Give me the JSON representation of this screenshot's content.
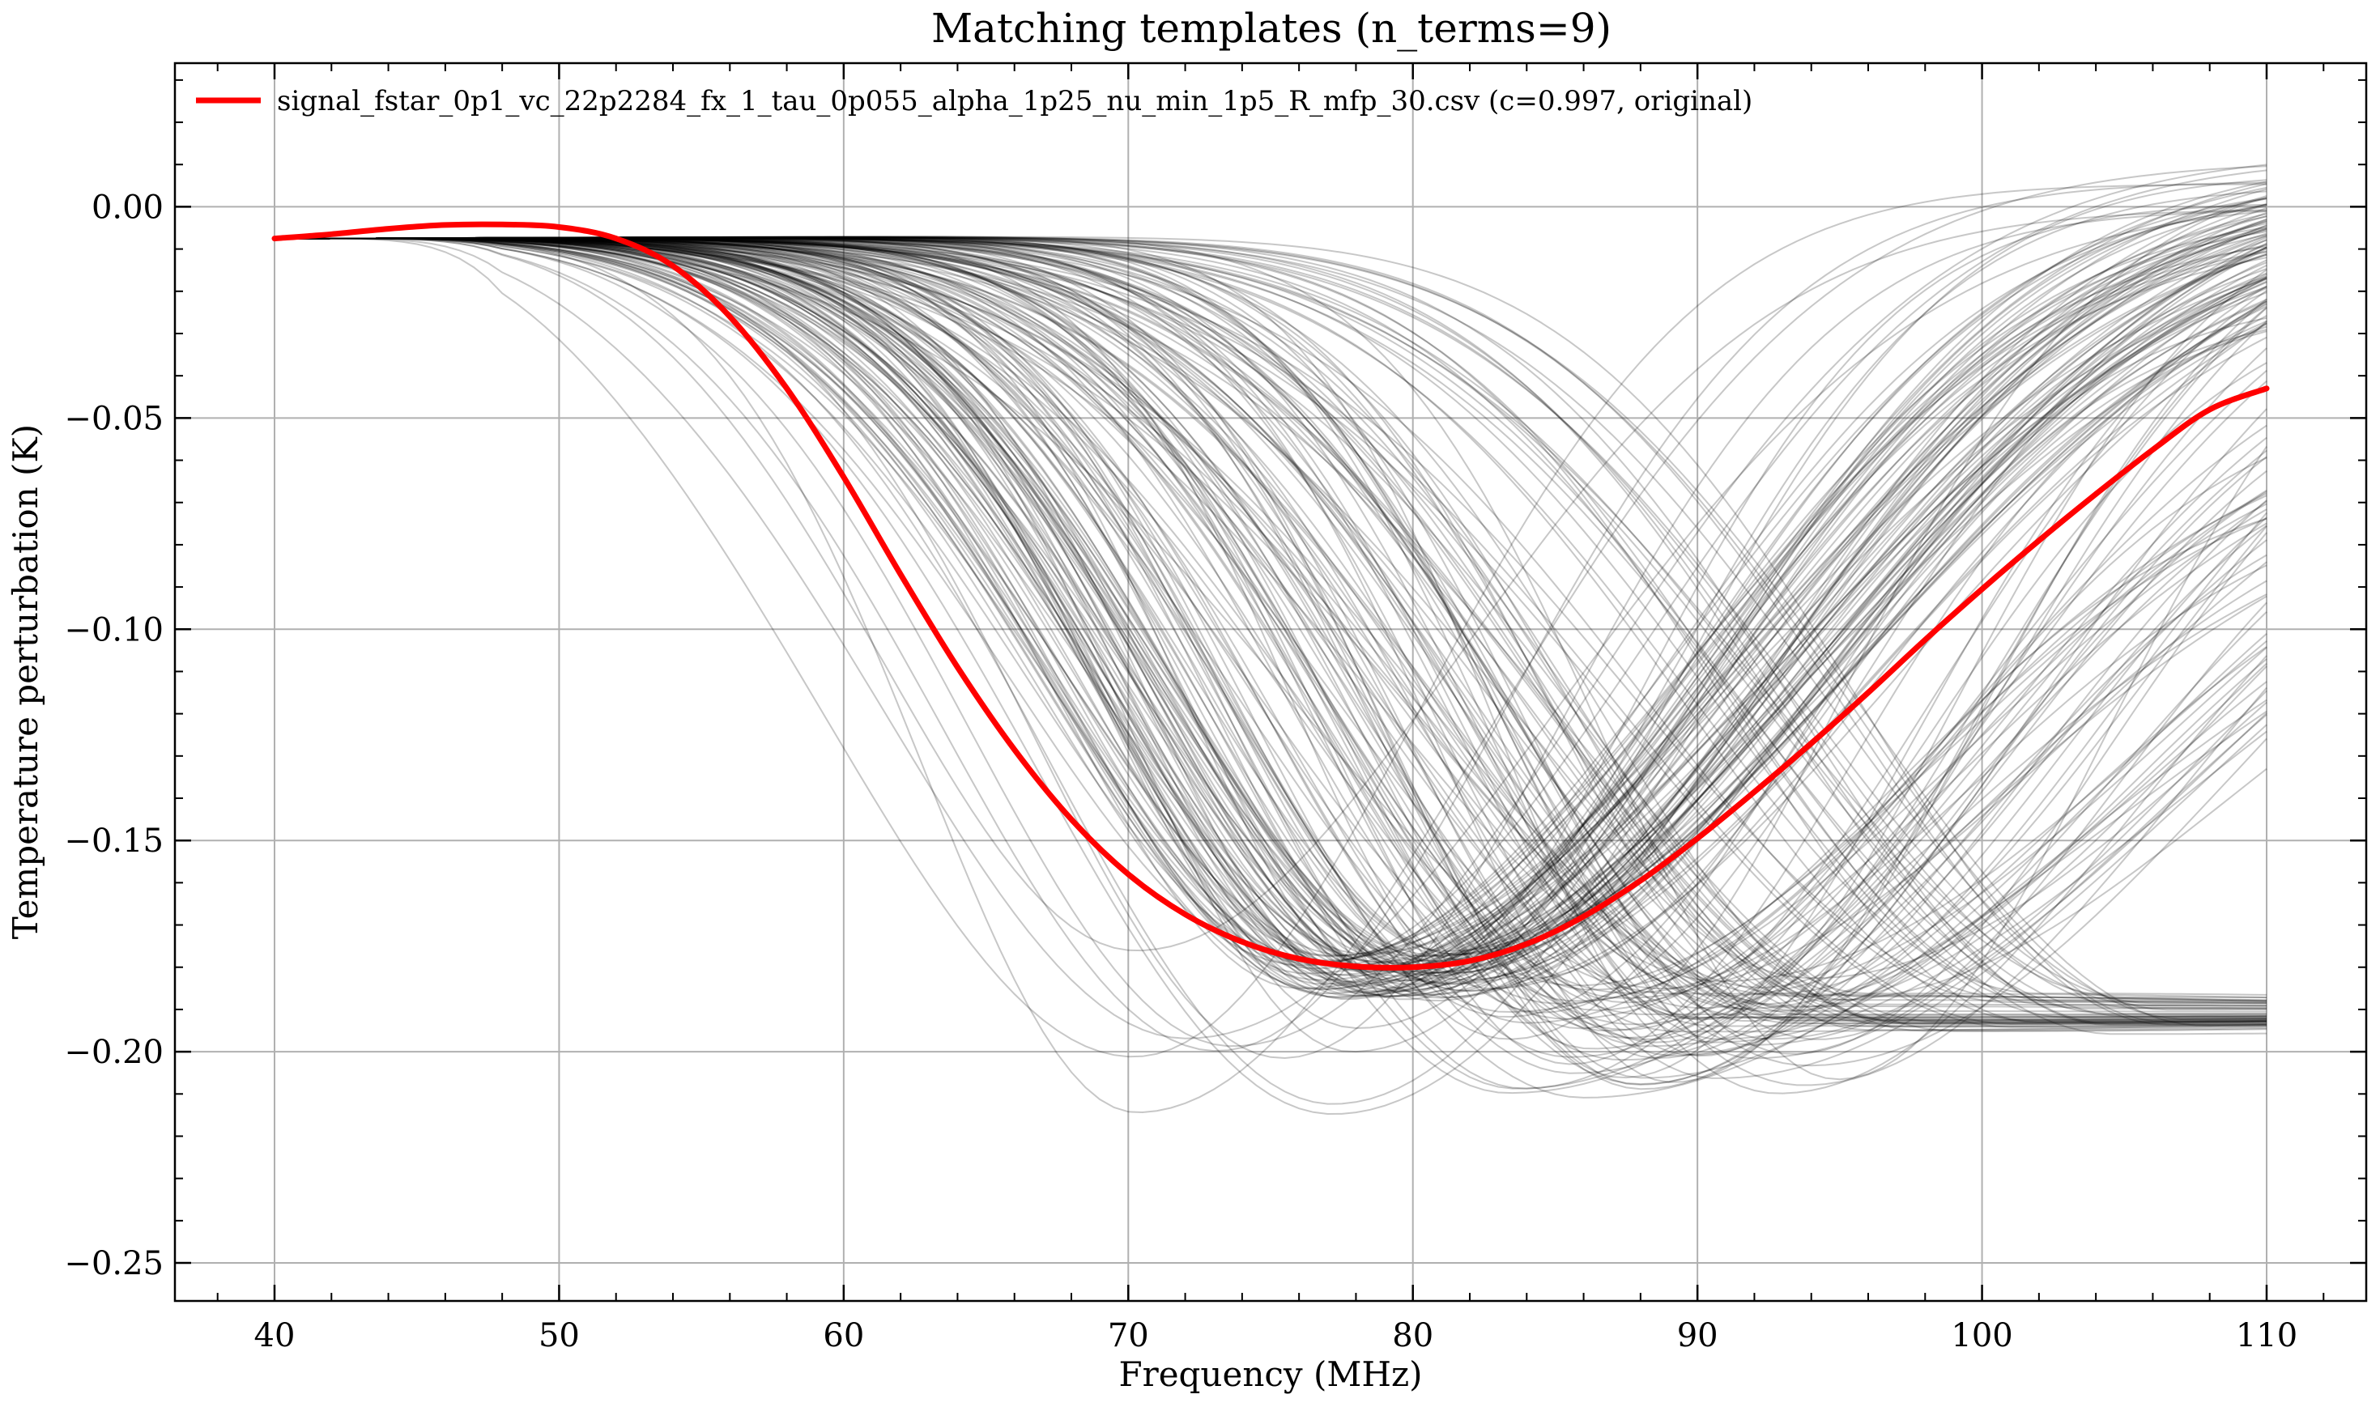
{
  "chart_data": {
    "type": "line",
    "title": "Matching templates (n_terms=9)",
    "xlabel": "Frequency (MHz)",
    "ylabel": "Temperature perturbation (K)",
    "xlim": [
      36.5,
      113.5
    ],
    "ylim": [
      -0.259,
      0.034
    ],
    "xticks": [
      40,
      50,
      60,
      70,
      80,
      90,
      100,
      110
    ],
    "yticks": [
      0.0,
      -0.05,
      -0.1,
      -0.15,
      -0.2,
      -0.25
    ],
    "ytick_labels": [
      "0.00",
      "−0.05",
      "−0.10",
      "−0.15",
      "−0.20",
      "−0.25"
    ],
    "x_range": [
      40,
      110
    ],
    "grid": true,
    "legend": {
      "placement": "top-left",
      "entries": [
        {
          "label": "signal_fstar_0p1_vc_22p2284_fx_1_tau_0p055_alpha_1p25_nu_min_1p5_R_mfp_30.csv (c=0.997, original)",
          "color": "#ff0000"
        }
      ]
    },
    "colors": {
      "templates": "#000000",
      "highlight": "#ff0000",
      "grid": "#b0b0b0"
    },
    "highlight_series": {
      "name": "signal_fstar_0p1_vc_22p2284_fx_1_tau_0p055_alpha_1p25_nu_min_1p5_R_mfp_30.csv (c=0.997, original)",
      "x": [
        40,
        42,
        44,
        46,
        48,
        50,
        52,
        54,
        56,
        58,
        60,
        62,
        64,
        66,
        68,
        70,
        72,
        74,
        76,
        78,
        80,
        82,
        84,
        86,
        88,
        90,
        92,
        94,
        96,
        98,
        100,
        102,
        104,
        106,
        108,
        110
      ],
      "y": [
        -0.0075,
        -0.0065,
        -0.0052,
        -0.0043,
        -0.0042,
        -0.0048,
        -0.0075,
        -0.014,
        -0.026,
        -0.043,
        -0.064,
        -0.087,
        -0.109,
        -0.1285,
        -0.145,
        -0.158,
        -0.1675,
        -0.174,
        -0.178,
        -0.1798,
        -0.18,
        -0.1785,
        -0.1745,
        -0.168,
        -0.1595,
        -0.1495,
        -0.1385,
        -0.127,
        -0.115,
        -0.1025,
        -0.0905,
        -0.079,
        -0.068,
        -0.0575,
        -0.048,
        -0.043
      ]
    },
    "template_family": {
      "count": 220,
      "note": "Dense family of matching absorption-trough templates rendered as thin translucent black lines.",
      "dip_center_range_MHz": [
        70,
        95
      ],
      "dip_depth_range_K": [
        -0.21,
        -0.17
      ],
      "start_value_K": -0.0075
    }
  }
}
